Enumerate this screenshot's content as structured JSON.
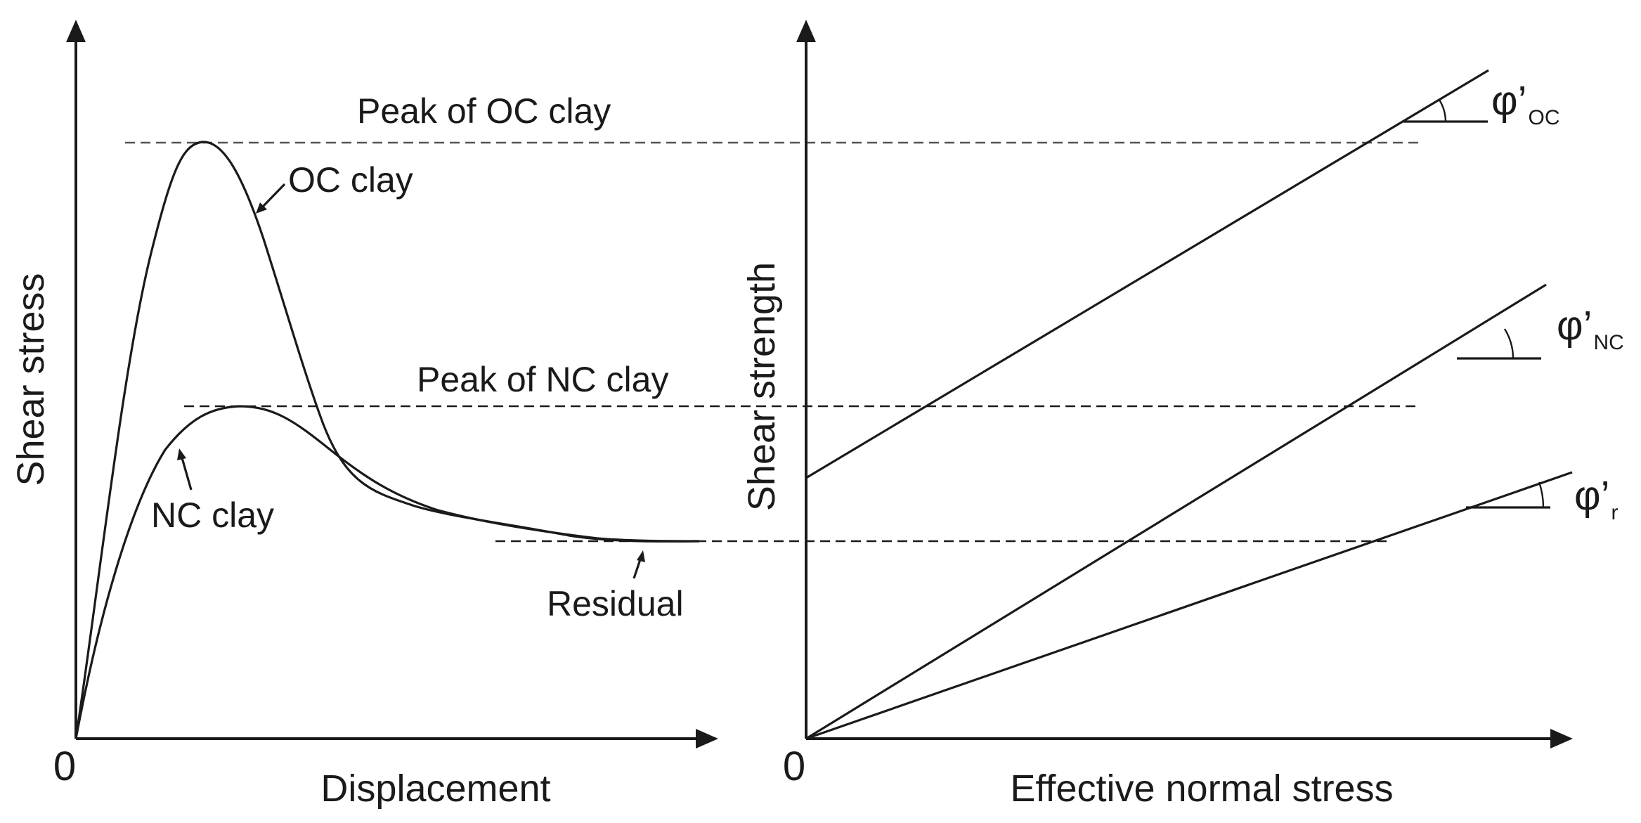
{
  "left_chart": {
    "y_axis_label": "Shear stress",
    "x_axis_label": "Displacement",
    "origin_label": "0",
    "labels": {
      "peak_oc": "Peak of OC clay",
      "peak_nc": "Peak of NC clay",
      "oc_clay": "OC clay",
      "nc_clay": "NC clay",
      "residual": "Residual"
    }
  },
  "right_chart": {
    "y_axis_label": "Shear strength",
    "x_axis_label": "Effective normal stress",
    "origin_label": "0",
    "angles": {
      "oc": {
        "symbol": "φ’",
        "subscript": "OC"
      },
      "nc": {
        "symbol": "φ’",
        "subscript": "NC"
      },
      "r": {
        "symbol": "φ’",
        "subscript": "r"
      }
    }
  }
}
